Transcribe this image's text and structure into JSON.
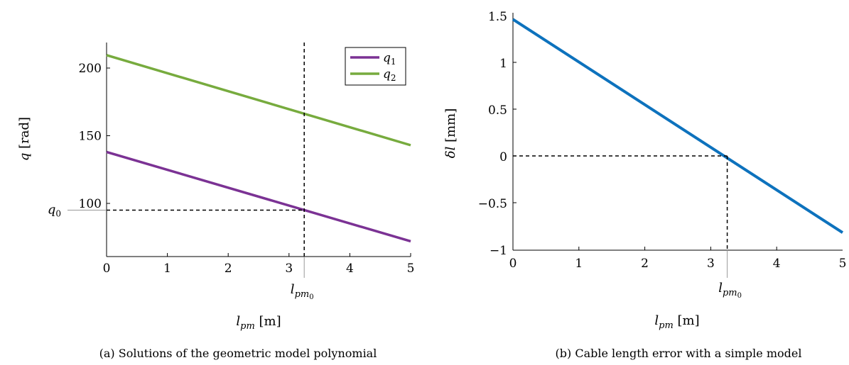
{
  "captions": {
    "a": "(a) Solutions of the geometric model polynomial",
    "b": "(b) Cable length error with a simple model"
  },
  "colors": {
    "purple": "#7b3294",
    "green": "#77ab3e",
    "blue": "#0d72bd"
  },
  "chart_data": [
    {
      "type": "line",
      "xlabel": "l_pm [m]",
      "ylabel": "q [rad]",
      "xlim": [
        0,
        5
      ],
      "ylim": [
        70,
        220
      ],
      "xticks": [
        "0",
        "1",
        "2",
        "3",
        "4",
        "5"
      ],
      "yticks": [
        "100",
        "150",
        "200"
      ],
      "x": [
        0,
        5
      ],
      "series": [
        {
          "name": "q1",
          "color": "#7b3294",
          "values": [
            138,
            72
          ]
        },
        {
          "name": "q2",
          "color": "#77ab3e",
          "values": [
            209.5,
            143
          ]
        }
      ],
      "annotations": {
        "x_marker": 3.25,
        "x_marker_label": "l_pm0",
        "y_marker": 95,
        "y_marker_label": "q0"
      },
      "legend": "top-right"
    },
    {
      "type": "line",
      "xlabel": "l_pm [m]",
      "ylabel": "δl [mm]",
      "xlim": [
        0,
        5
      ],
      "ylim": [
        -1,
        1.5
      ],
      "xticks": [
        "0",
        "1",
        "2",
        "3",
        "4",
        "5"
      ],
      "yticks": [
        "−1",
        "−0.5",
        "0",
        "0.5",
        "1",
        "1.5"
      ],
      "x": [
        0,
        5
      ],
      "series": [
        {
          "color": "#0d72bd",
          "values": [
            1.46,
            -0.82
          ]
        }
      ],
      "annotations": {
        "x_marker": 3.25,
        "x_marker_label": "l_pm0",
        "y_marker": 0
      }
    }
  ]
}
